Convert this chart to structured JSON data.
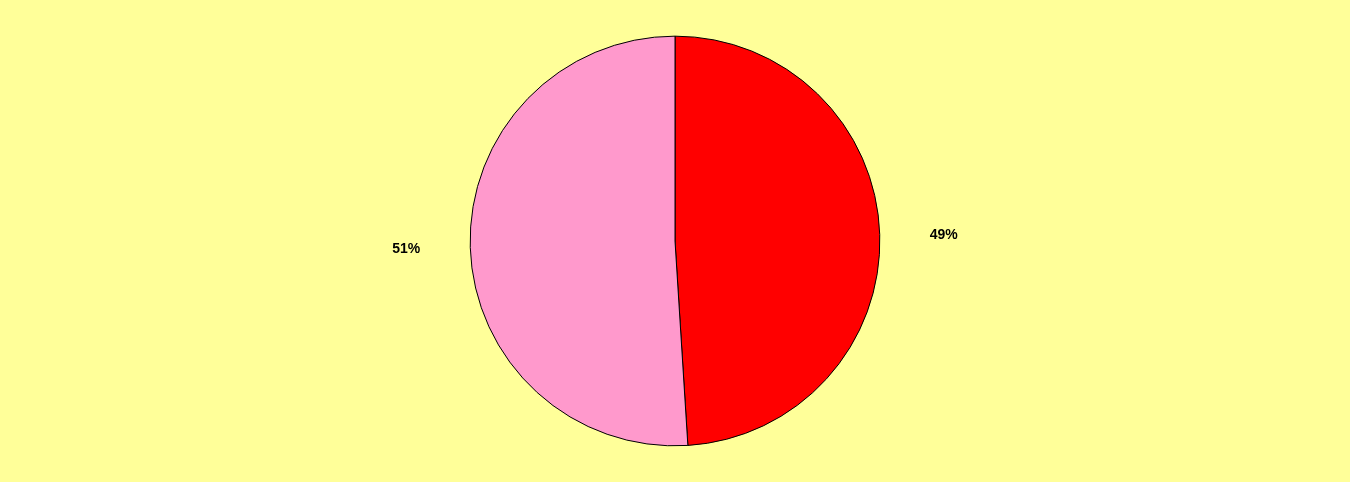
{
  "chart_data": {
    "type": "pie",
    "categories": [
      null,
      null
    ],
    "values": [
      49,
      51
    ],
    "colors": [
      "#ff0000",
      "#ff99cc"
    ],
    "value_labels": [
      "49%",
      "51%"
    ]
  }
}
